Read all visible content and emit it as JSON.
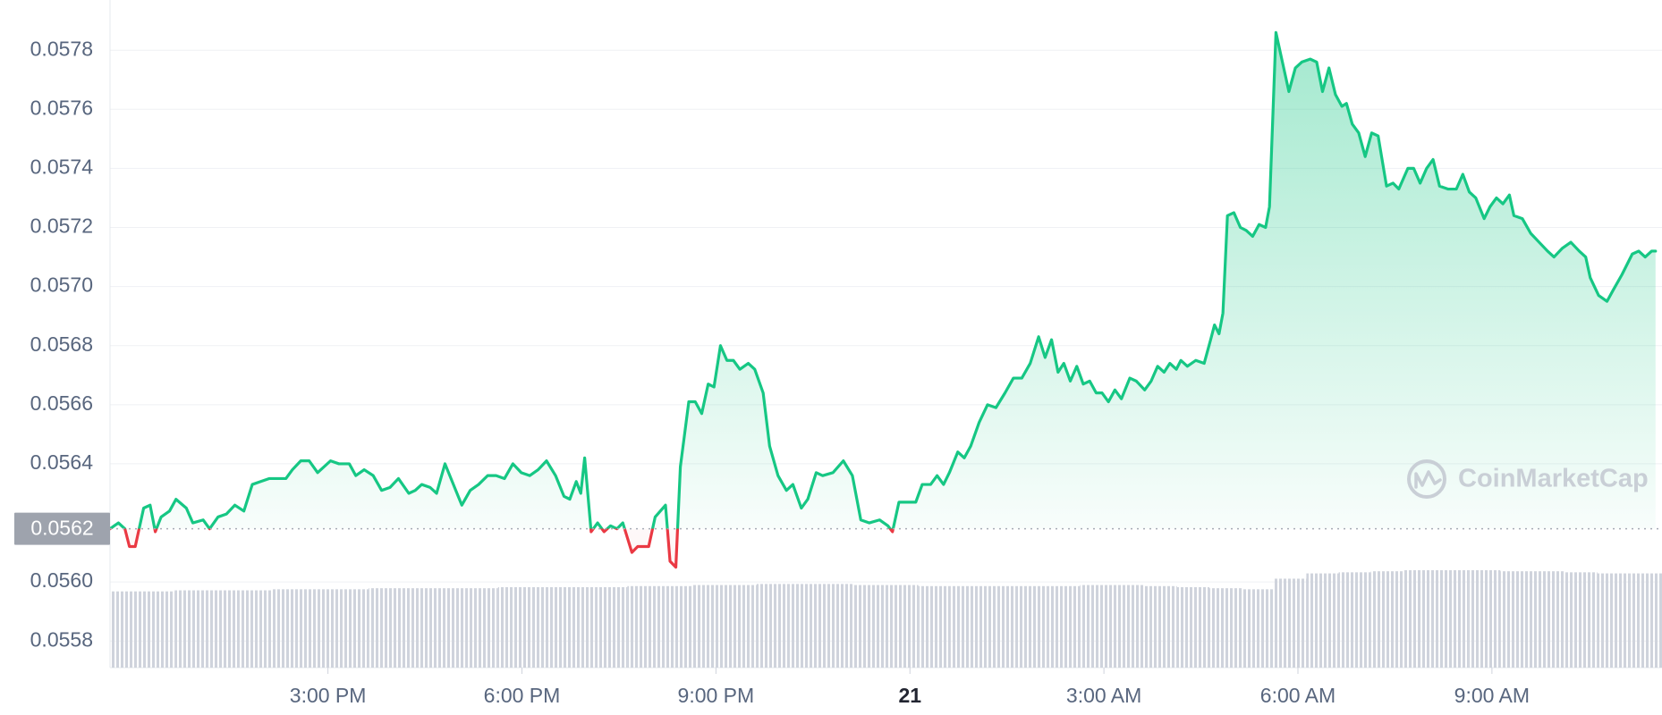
{
  "chart_data": {
    "type": "line",
    "x": [
      11.63,
      11.76,
      11.86,
      11.93,
      12.02,
      12.15,
      12.25,
      12.33,
      12.42,
      12.55,
      12.65,
      12.81,
      12.91,
      13.07,
      13.17,
      13.3,
      13.43,
      13.56,
      13.7,
      13.83,
      13.96,
      14.09,
      14.22,
      14.35,
      14.45,
      14.58,
      14.71,
      14.84,
      15.04,
      15.17,
      15.33,
      15.43,
      15.56,
      15.7,
      15.83,
      15.96,
      16.09,
      16.25,
      16.35,
      16.45,
      16.58,
      16.68,
      16.81,
      16.94,
      17.07,
      17.2,
      17.33,
      17.47,
      17.6,
      17.73,
      17.86,
      17.99,
      18.12,
      18.25,
      18.38,
      18.52,
      18.65,
      18.74,
      18.84,
      18.91,
      18.97,
      19.07,
      19.17,
      19.27,
      19.37,
      19.47,
      19.56,
      19.7,
      19.79,
      19.96,
      20.06,
      20.22,
      20.29,
      20.38,
      20.45,
      20.58,
      20.68,
      20.78,
      20.88,
      20.97,
      21.07,
      21.17,
      21.27,
      21.37,
      21.5,
      21.6,
      21.73,
      21.83,
      21.96,
      22.09,
      22.19,
      22.32,
      22.42,
      22.55,
      22.65,
      22.81,
      22.97,
      23.11,
      23.24,
      23.37,
      23.53,
      23.66,
      23.73,
      23.83,
      23.96,
      24.09,
      24.19,
      24.32,
      24.42,
      24.52,
      24.61,
      24.74,
      24.84,
      24.94,
      25.07,
      25.2,
      25.33,
      25.47,
      25.6,
      25.73,
      25.86,
      25.99,
      26.09,
      26.19,
      26.29,
      26.38,
      26.48,
      26.58,
      26.68,
      26.78,
      26.88,
      26.97,
      27.07,
      27.17,
      27.27,
      27.4,
      27.5,
      27.63,
      27.73,
      27.83,
      27.93,
      28.02,
      28.12,
      28.19,
      28.29,
      28.42,
      28.55,
      28.65,
      28.71,
      28.78,
      28.84,
      28.91,
      29.01,
      29.11,
      29.2,
      29.3,
      29.4,
      29.5,
      29.56,
      29.66,
      29.76,
      29.86,
      29.96,
      30.06,
      30.19,
      30.29,
      30.38,
      30.48,
      30.58,
      30.68,
      30.75,
      30.84,
      30.94,
      31.04,
      31.14,
      31.24,
      31.37,
      31.47,
      31.56,
      31.7,
      31.79,
      31.89,
      31.99,
      32.09,
      32.19,
      32.32,
      32.45,
      32.55,
      32.65,
      32.75,
      32.88,
      32.97,
      33.07,
      33.17,
      33.27,
      33.34,
      33.47,
      33.6,
      33.73,
      33.86,
      33.96,
      34.09,
      34.22,
      34.35,
      34.45,
      34.52,
      34.65,
      34.78,
      34.88,
      35.01,
      35.17,
      35.27,
      35.37,
      35.47,
      35.53
    ],
    "values": [
      0.05618,
      0.0562,
      0.05618,
      0.05612,
      0.05612,
      0.05625,
      0.05626,
      0.05617,
      0.05622,
      0.05624,
      0.05628,
      0.05625,
      0.0562,
      0.05621,
      0.05618,
      0.05622,
      0.05623,
      0.05626,
      0.05624,
      0.05633,
      0.05634,
      0.05635,
      0.05635,
      0.05635,
      0.05638,
      0.05641,
      0.05641,
      0.05637,
      0.05641,
      0.0564,
      0.0564,
      0.05636,
      0.05638,
      0.05636,
      0.05631,
      0.05632,
      0.05635,
      0.0563,
      0.05631,
      0.05633,
      0.05632,
      0.0563,
      0.0564,
      0.05633,
      0.05626,
      0.05631,
      0.05633,
      0.05636,
      0.05636,
      0.05635,
      0.0564,
      0.05637,
      0.05636,
      0.05638,
      0.05641,
      0.05636,
      0.05629,
      0.05628,
      0.05634,
      0.0563,
      0.05642,
      0.05617,
      0.0562,
      0.05617,
      0.05619,
      0.05618,
      0.0562,
      0.0561,
      0.05612,
      0.05612,
      0.05622,
      0.05626,
      0.05607,
      0.05605,
      0.05639,
      0.05661,
      0.05661,
      0.05657,
      0.05667,
      0.05666,
      0.0568,
      0.05675,
      0.05675,
      0.05672,
      0.05674,
      0.05672,
      0.05664,
      0.05646,
      0.05636,
      0.05631,
      0.05633,
      0.05625,
      0.05628,
      0.05637,
      0.05636,
      0.05637,
      0.05641,
      0.05636,
      0.05621,
      0.0562,
      0.05621,
      0.05619,
      0.05617,
      0.05627,
      0.05627,
      0.05627,
      0.05633,
      0.05633,
      0.05636,
      0.05633,
      0.05637,
      0.05644,
      0.05642,
      0.05646,
      0.05654,
      0.0566,
      0.05659,
      0.05664,
      0.05669,
      0.05669,
      0.05674,
      0.05683,
      0.05676,
      0.05682,
      0.05671,
      0.05674,
      0.05668,
      0.05673,
      0.05667,
      0.05668,
      0.05664,
      0.05664,
      0.05661,
      0.05665,
      0.05662,
      0.05669,
      0.05668,
      0.05665,
      0.05668,
      0.05673,
      0.05671,
      0.05674,
      0.05672,
      0.05675,
      0.05673,
      0.05675,
      0.05674,
      0.05682,
      0.05687,
      0.05684,
      0.05691,
      0.05724,
      0.05725,
      0.0572,
      0.05719,
      0.05717,
      0.05721,
      0.0572,
      0.05727,
      0.05786,
      0.05776,
      0.05766,
      0.05774,
      0.05776,
      0.05777,
      0.05776,
      0.05766,
      0.05774,
      0.05765,
      0.05761,
      0.05762,
      0.05755,
      0.05752,
      0.05744,
      0.05752,
      0.05751,
      0.05734,
      0.05735,
      0.05733,
      0.0574,
      0.0574,
      0.05735,
      0.0574,
      0.05743,
      0.05734,
      0.05733,
      0.05733,
      0.05738,
      0.05732,
      0.0573,
      0.05723,
      0.05727,
      0.0573,
      0.05728,
      0.05731,
      0.05724,
      0.05723,
      0.05718,
      0.05715,
      0.05712,
      0.0571,
      0.05713,
      0.05715,
      0.05712,
      0.0571,
      0.05703,
      0.05697,
      0.05695,
      0.05699,
      0.05704,
      0.05711,
      0.05712,
      0.0571,
      0.05712,
      0.05712
    ],
    "volume": {
      "bins": [
        11.63,
        12.13,
        12.63,
        13.13,
        13.63,
        14.13,
        14.63,
        15.13,
        15.63,
        16.13,
        16.63,
        17.13,
        17.63,
        18.13,
        18.63,
        19.13,
        19.63,
        20.13,
        20.63,
        21.13,
        21.63,
        22.13,
        22.63,
        23.13,
        23.63,
        24.13,
        24.63,
        25.13,
        25.63,
        26.13,
        26.63,
        27.13,
        27.63,
        28.13,
        28.63,
        29.13,
        29.63,
        30.13,
        30.63,
        31.13,
        31.63,
        32.13,
        32.63,
        33.13,
        33.63,
        34.13,
        34.63,
        35.13,
        35.63
      ],
      "values": [
        72,
        72,
        73,
        73,
        73,
        74,
        74,
        74,
        75,
        75,
        75,
        75,
        76,
        76,
        76,
        76,
        77,
        77,
        78,
        78,
        79,
        79,
        79,
        78,
        78,
        77,
        77,
        77,
        77,
        77,
        78,
        78,
        77,
        76,
        75,
        74,
        84,
        89,
        90,
        91,
        92,
        92,
        92,
        91,
        91,
        90,
        89,
        89
      ],
      "color": "#cfd3dc"
    },
    "baseline": {
      "value": 0.05618,
      "label": "0.0562"
    },
    "xlim": [
      11.63,
      35.63
    ],
    "ylim": [
      0.05571,
      0.05797
    ],
    "xticks": [
      {
        "value": 15,
        "label": "3:00 PM"
      },
      {
        "value": 18,
        "label": "6:00 PM"
      },
      {
        "value": 21,
        "label": "9:00 PM"
      },
      {
        "value": 24,
        "label": "21"
      },
      {
        "value": 27,
        "label": "3:00 AM"
      },
      {
        "value": 30,
        "label": "6:00 AM"
      },
      {
        "value": 33,
        "label": "9:00 AM"
      }
    ],
    "yticks": [
      0.0558,
      {
        "value": 0.056,
        "label": "0.0560"
      },
      0.0564,
      0.0566,
      0.0568,
      {
        "value": 0.057,
        "label": "0.0570"
      },
      0.0572,
      0.0574,
      0.0576,
      0.0578
    ],
    "up_color": "#16c784",
    "down_color": "#ea3943",
    "grid": true,
    "watermark": "CoinMarketCap"
  }
}
